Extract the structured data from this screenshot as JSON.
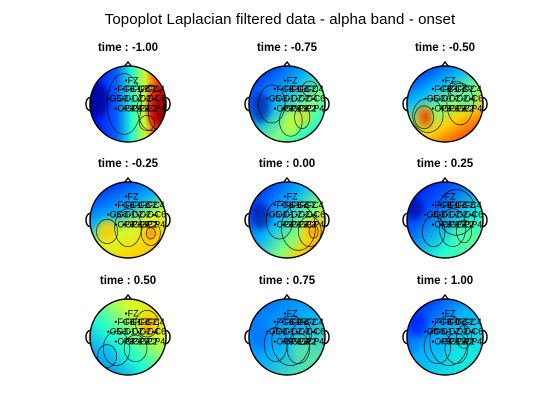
{
  "figure": {
    "title": "Topoplot Laplacian filtered data - alpha band - onset"
  },
  "panels": [
    {
      "time_label": "time : -1.00",
      "pattern": "strong-right-positive"
    },
    {
      "time_label": "time : -0.75",
      "pattern": "mixed"
    },
    {
      "time_label": "time : -0.50",
      "pattern": "left-positive"
    },
    {
      "time_label": "time : -0.25",
      "pattern": "left-and-right-positive"
    },
    {
      "time_label": "time : 0.00",
      "pattern": "right-positive"
    },
    {
      "time_label": "time : 0.25",
      "pattern": "mostly-neutral"
    },
    {
      "time_label": "time : 0.50",
      "pattern": "upper-right-positive"
    },
    {
      "time_label": "time : 0.75",
      "pattern": "mostly-neutral"
    },
    {
      "time_label": "time : 1.00",
      "pattern": "mostly-neutral"
    }
  ],
  "electrodes": [
    {
      "label": "FZ"
    },
    {
      "label": "FC3"
    },
    {
      "label": "FC1"
    },
    {
      "label": "FCZ"
    },
    {
      "label": "FC2"
    },
    {
      "label": "FC4"
    },
    {
      "label": "C5"
    },
    {
      "label": "C3"
    },
    {
      "label": "C1"
    },
    {
      "label": "CZ"
    },
    {
      "label": "C2"
    },
    {
      "label": "C4"
    },
    {
      "label": "C6"
    },
    {
      "label": "CP3"
    },
    {
      "label": "CP1"
    },
    {
      "label": "CPZ"
    },
    {
      "label": "CP2"
    },
    {
      "label": "CP4"
    }
  ],
  "colors": {
    "colormap": "jet",
    "low": "#00008f",
    "mid": "#7fff7f",
    "high": "#800000"
  }
}
